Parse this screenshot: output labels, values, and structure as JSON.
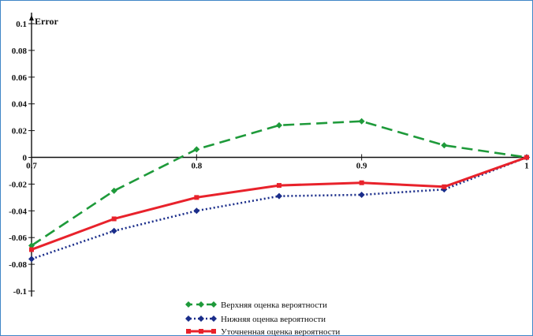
{
  "chart_data": {
    "type": "line",
    "title": "",
    "xlabel": "",
    "ylabel": "Error",
    "xlim": [
      0.7,
      1.0
    ],
    "ylim": [
      -0.1,
      0.1
    ],
    "grid": false,
    "legend_position": "bottom-center",
    "x_ticks": [
      "0.7",
      "0.8",
      "0.9",
      "1"
    ],
    "y_ticks": [
      "0.1",
      "0.08",
      "0.06",
      "0.04",
      "0.02",
      "0",
      "-0.02",
      "-0.04",
      "-0.06",
      "-0.08",
      "-0.1"
    ],
    "x": [
      0.7,
      0.75,
      0.8,
      0.85,
      0.9,
      0.95,
      1.0
    ],
    "series": [
      {
        "name": "Верхняя оценка вероятности",
        "color": "#1e9a3a",
        "line_style": "dashed",
        "marker": "diamond",
        "values": [
          -0.066,
          -0.025,
          0.006,
          0.024,
          0.027,
          0.009,
          0.0
        ]
      },
      {
        "name": "Нижняя оценка вероятности",
        "color": "#1a2d8a",
        "line_style": "dotted",
        "marker": "diamond",
        "values": [
          -0.076,
          -0.055,
          -0.04,
          -0.029,
          -0.028,
          -0.024,
          0.0
        ]
      },
      {
        "name": "Уточненная оценка вероятности",
        "color": "#e8222b",
        "line_style": "solid",
        "marker": "square",
        "values": [
          -0.069,
          -0.046,
          -0.03,
          -0.021,
          -0.019,
          -0.022,
          0.0
        ]
      }
    ]
  }
}
